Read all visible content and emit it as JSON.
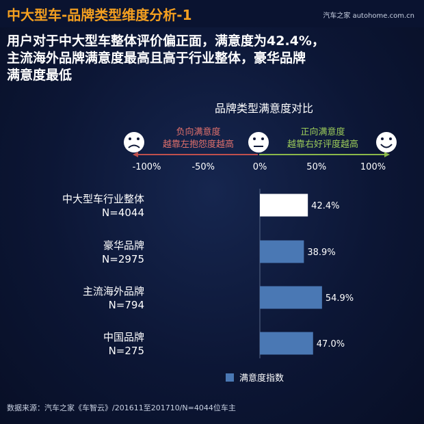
{
  "header": {
    "title": "中大型车-品牌类型维度分析-1",
    "brand": "汽车之家 autohome.com.cn"
  },
  "headline": {
    "line1": "用户对于中大型车整体评价偏正面，满意度为42.4%，",
    "line2": "主流海外品牌满意度最高且高于行业整体，豪华品牌",
    "line3": "满意度最低"
  },
  "chart_data": {
    "type": "bar",
    "orientation": "horizontal",
    "title": "品牌类型满意度对比",
    "categories": [
      {
        "name": "中大型车行业整体",
        "n": "N=4044"
      },
      {
        "name": "豪华品牌",
        "n": "N=2975"
      },
      {
        "name": "主流海外品牌",
        "n": "N=794"
      },
      {
        "name": "中国品牌",
        "n": "N=275"
      }
    ],
    "series": [
      {
        "name": "满意度指数",
        "values": [
          42.4,
          38.9,
          54.9,
          47.0
        ],
        "labels": [
          "42.4%",
          "38.9%",
          "54.9%",
          "47.0%"
        ]
      }
    ],
    "xlim": [
      -100,
      100
    ],
    "ticks": [
      -100,
      -50,
      0,
      50,
      100
    ],
    "tick_labels": [
      "-100%",
      "-50%",
      "0%",
      "50%",
      "100%"
    ],
    "scale": {
      "negative": {
        "label1": "负向满意度",
        "label2": "越靠左抱怨度越高"
      },
      "positive": {
        "label1": "正向满意度",
        "label2": "越靠右好评度越高"
      }
    },
    "colors": {
      "highlight_bar": "#ffffff",
      "bar": "#4a78b4",
      "negative_arrow": "#c0504d",
      "positive_arrow": "#8bb84a"
    },
    "highlight_index": 0,
    "legend_position": "bottom-right"
  },
  "footer": {
    "source": "数据来源：汽车之家《车智云》/201611至201710/N=4044位车主"
  }
}
